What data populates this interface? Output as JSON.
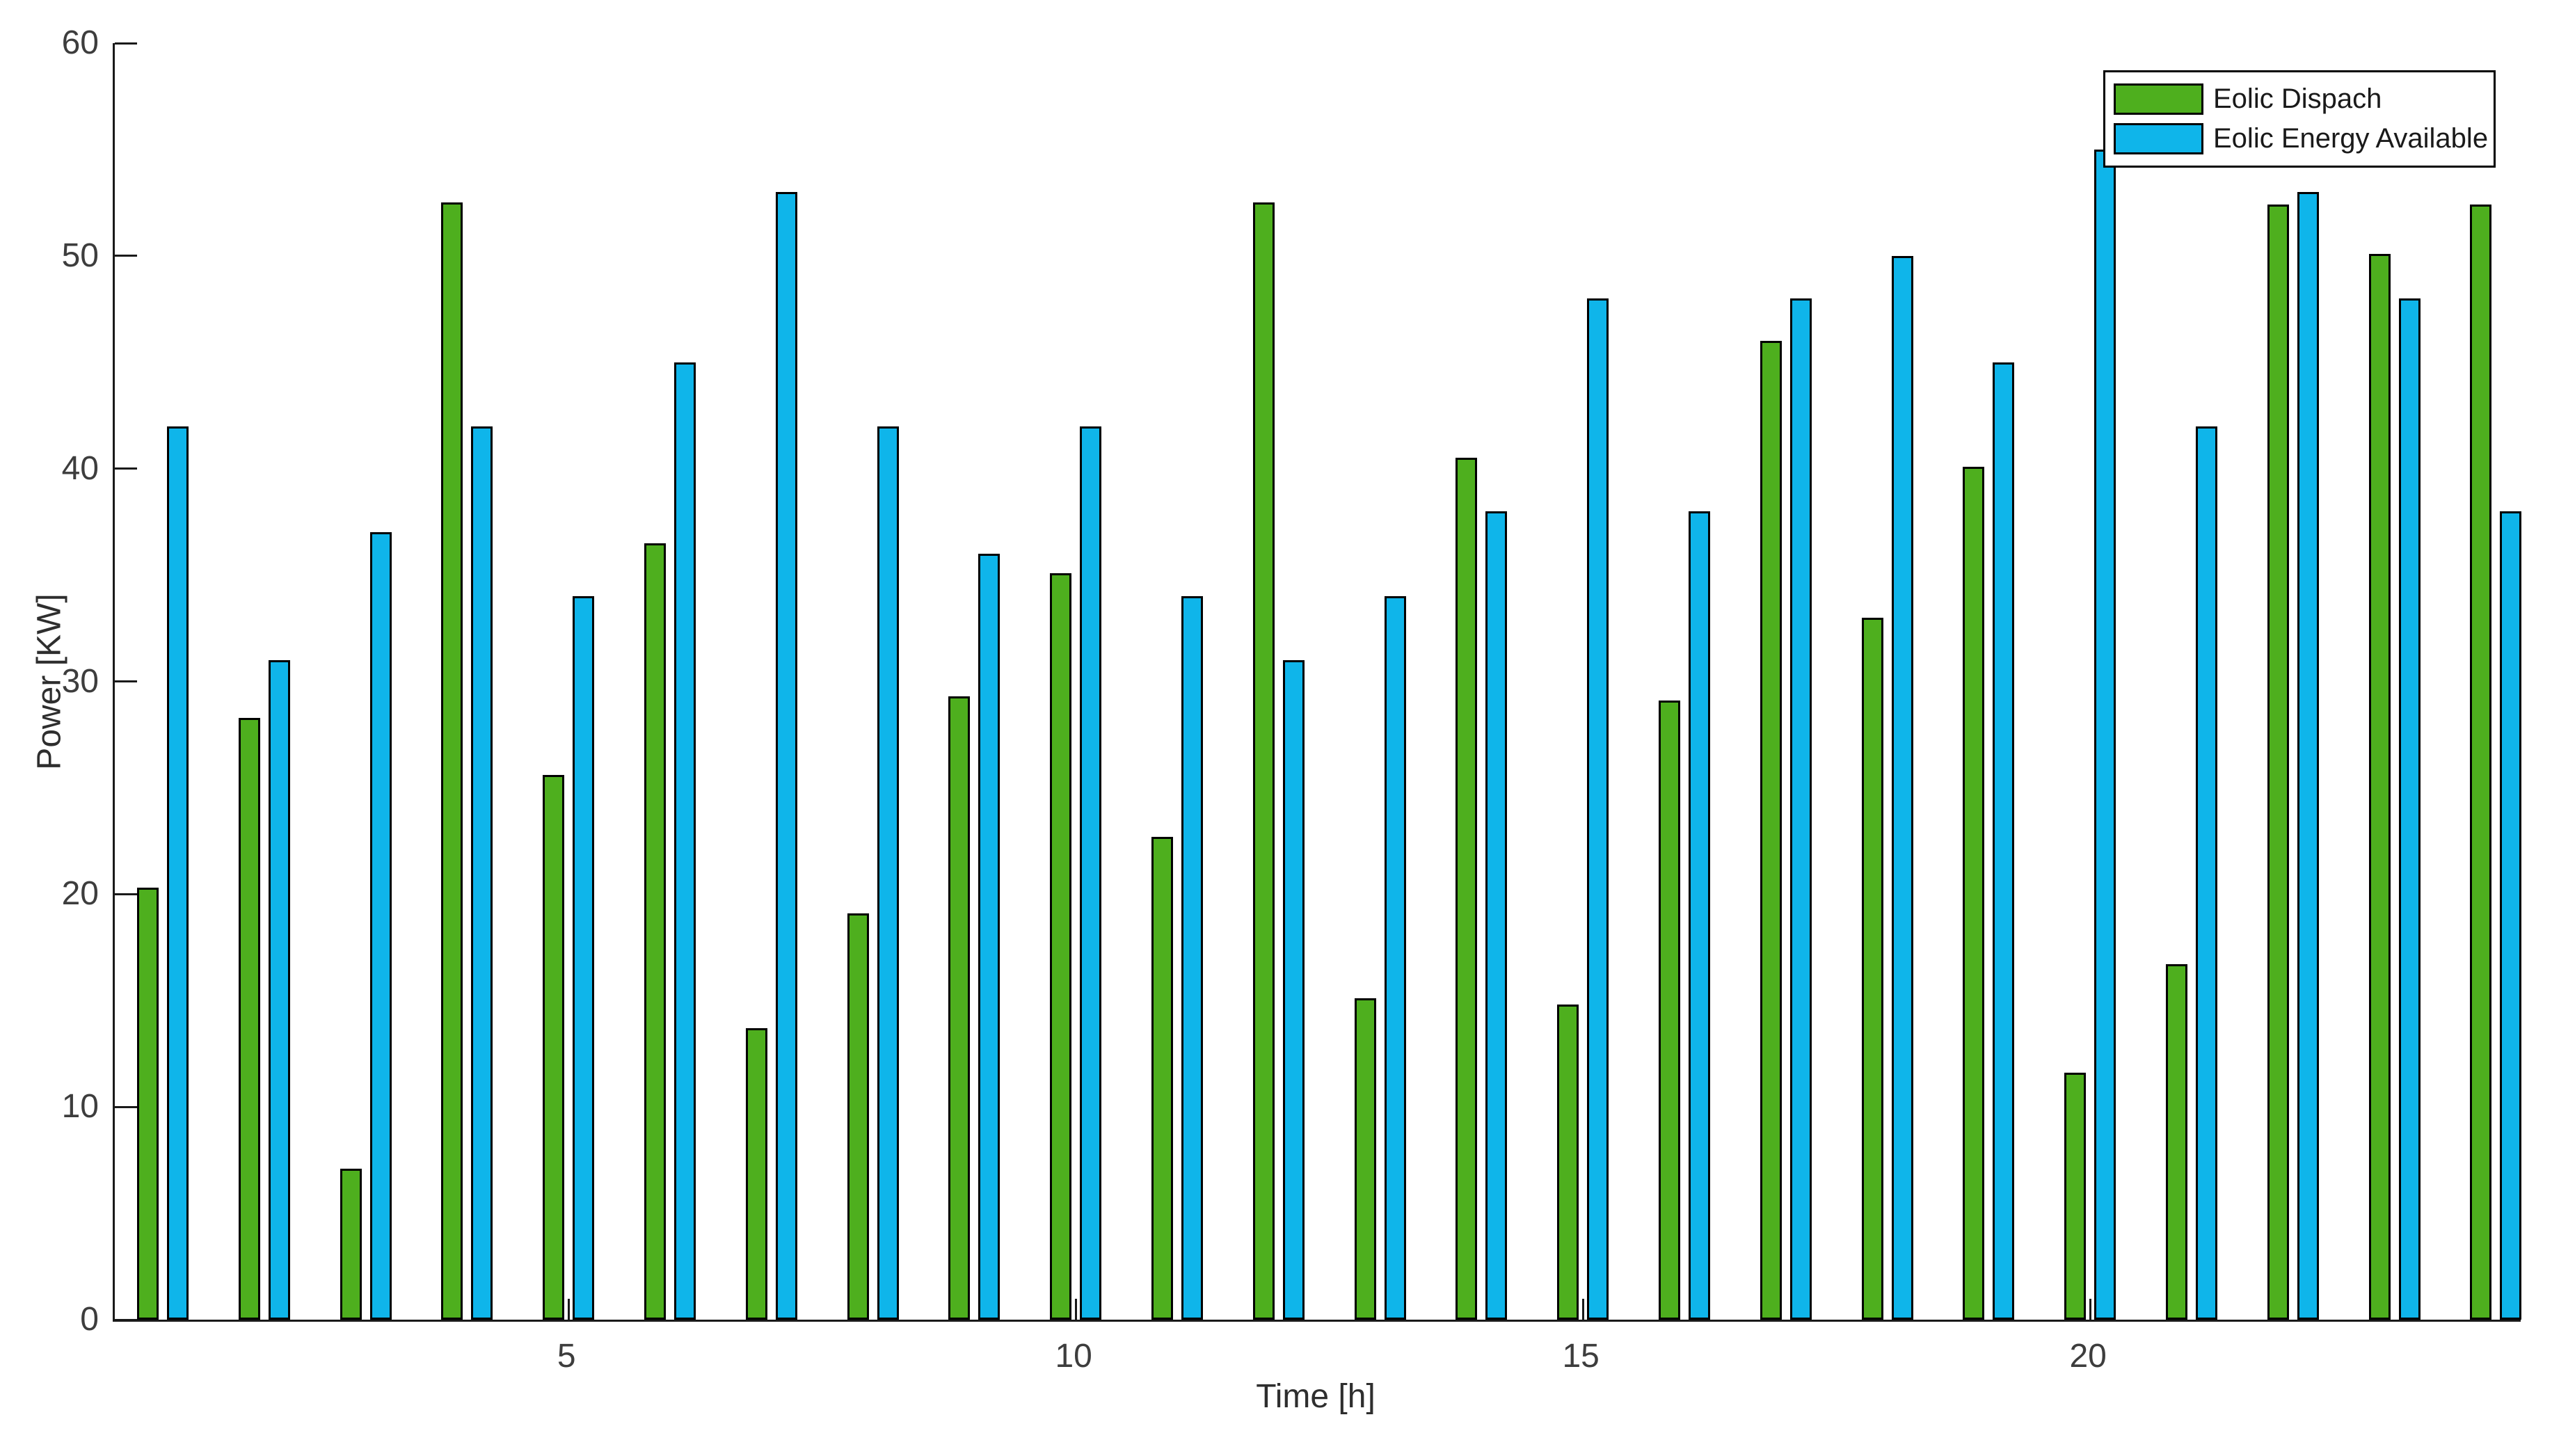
{
  "figure": {
    "background_color": "#ffffff",
    "axis_color": "#1a1a1a",
    "tick_text_color": "#3d3d3d"
  },
  "chart_data": {
    "type": "bar",
    "title": "",
    "xlabel": "Time [h]",
    "ylabel": "Power [KW]",
    "categories": [
      1,
      2,
      3,
      4,
      5,
      6,
      7,
      8,
      9,
      10,
      11,
      12,
      13,
      14,
      15,
      16,
      17,
      18,
      19,
      20,
      21,
      22,
      23,
      24
    ],
    "x_tick_values": [
      5,
      10,
      15,
      20
    ],
    "x_tick_labels": [
      "5",
      "10",
      "15",
      "20"
    ],
    "y_tick_values": [
      0,
      10,
      20,
      30,
      40,
      50,
      60
    ],
    "y_tick_labels": [
      "0",
      "10",
      "20",
      "30",
      "40",
      "50",
      "60"
    ],
    "ylim": [
      0,
      60
    ],
    "grid": false,
    "legend_position": "top-right",
    "bar_edge_color": "#000000",
    "series": [
      {
        "name": "Eolic Dispach",
        "color": "#4EAF1E",
        "values": [
          20.3,
          28.3,
          7.1,
          52.5,
          25.6,
          36.5,
          13.7,
          19.1,
          29.3,
          35.1,
          22.7,
          52.5,
          15.1,
          40.5,
          14.8,
          29.1,
          46,
          33,
          40.1,
          11.6,
          16.7,
          52.4,
          50.1,
          52.4
        ]
      },
      {
        "name": "Eolic Energy Available",
        "color": "#0FB5EA",
        "values": [
          42,
          31,
          37,
          42,
          34,
          45,
          53,
          42,
          36,
          42,
          34,
          31,
          34,
          38,
          48,
          38,
          48,
          50,
          45,
          55,
          42,
          53,
          48,
          38
        ]
      }
    ]
  }
}
